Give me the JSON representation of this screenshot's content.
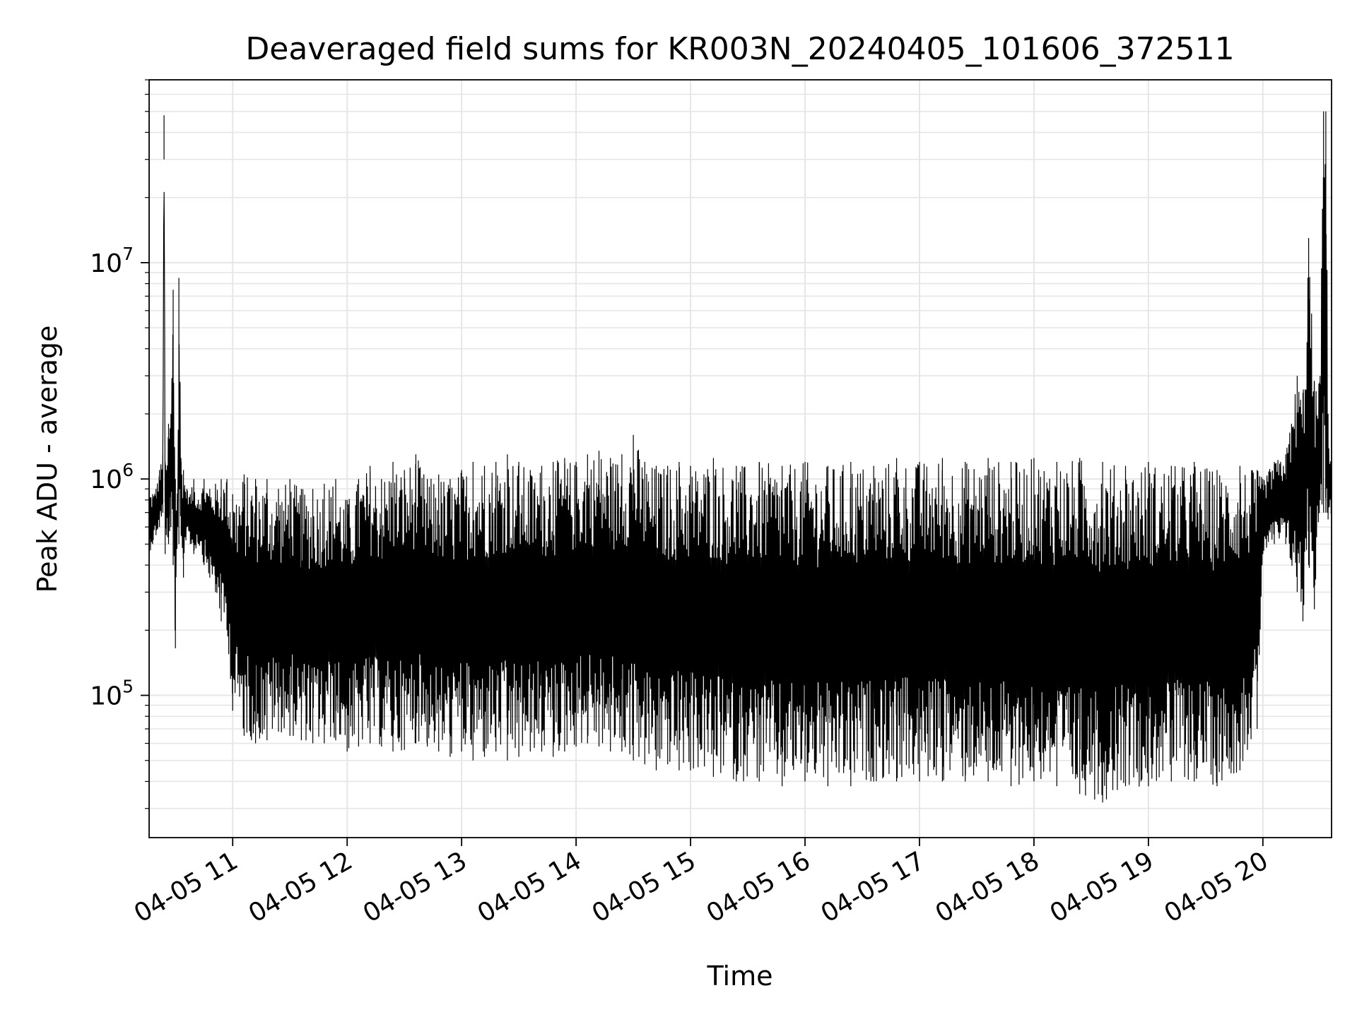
{
  "chart_data": {
    "type": "line",
    "title": "Deaveraged field sums for KR003N_20240405_101606_372511",
    "xlabel": "Time",
    "ylabel": "Peak ADU - average",
    "x_tick_labels": [
      "04-05 11",
      "04-05 12",
      "04-05 13",
      "04-05 14",
      "04-05 15",
      "04-05 16",
      "04-05 17",
      "04-05 18",
      "04-05 19",
      "04-05 20"
    ],
    "x_ticks_hours": [
      11,
      12,
      13,
      14,
      15,
      16,
      17,
      18,
      19,
      20
    ],
    "xlim_hours": [
      10.27,
      20.6
    ],
    "y_scale": "log",
    "ylim": [
      22000,
      70000000
    ],
    "y_tick_labels": [
      {
        "value": 100000,
        "base": "10",
        "exp": "5"
      },
      {
        "value": 1000000,
        "base": "10",
        "exp": "6"
      },
      {
        "value": 10000000,
        "base": "10",
        "exp": "7"
      }
    ],
    "grid": true,
    "line_color": "#000000",
    "grid_color": "#e6e6e6",
    "series": [
      {
        "name": "",
        "x_hours": [
          10.27,
          10.3,
          10.33,
          10.36,
          10.39,
          10.4,
          10.41,
          10.42,
          10.44,
          10.46,
          10.48,
          10.5,
          10.52,
          10.53,
          10.55,
          10.57,
          10.6,
          10.63,
          10.66,
          10.7,
          10.75,
          10.8,
          10.85,
          10.9,
          10.95,
          11.0,
          11.1,
          11.2,
          11.3,
          11.4,
          11.5,
          11.6,
          11.7,
          11.8,
          11.9,
          12.0,
          12.1,
          12.2,
          12.3,
          12.4,
          12.5,
          12.6,
          12.7,
          12.8,
          12.9,
          13.0,
          13.1,
          13.2,
          13.3,
          13.4,
          13.5,
          13.6,
          13.7,
          13.8,
          13.9,
          14.0,
          14.1,
          14.2,
          14.3,
          14.4,
          14.5,
          14.6,
          14.7,
          14.8,
          14.9,
          15.0,
          15.2,
          15.4,
          15.6,
          15.8,
          16.0,
          16.2,
          16.4,
          16.6,
          16.8,
          17.0,
          17.2,
          17.4,
          17.6,
          17.8,
          18.0,
          18.2,
          18.4,
          18.6,
          18.8,
          19.0,
          19.2,
          19.4,
          19.6,
          19.8,
          19.95,
          20.0,
          20.1,
          20.2,
          20.3,
          20.35,
          20.4,
          20.45,
          20.5,
          20.53,
          20.55,
          20.57,
          20.6
        ],
        "low": [
          450000,
          500000,
          550000,
          600000,
          700000,
          30000000,
          450000,
          550000,
          500000,
          600000,
          400000,
          165000,
          600000,
          500000,
          550000,
          350000,
          600000,
          500000,
          450000,
          500000,
          400000,
          350000,
          300000,
          220000,
          200000,
          85000,
          65000,
          60000,
          62000,
          68000,
          65000,
          62000,
          60000,
          60000,
          62000,
          55000,
          58000,
          60000,
          58000,
          55000,
          56000,
          60000,
          58000,
          55000,
          52000,
          55000,
          50000,
          52000,
          55000,
          50000,
          52000,
          55000,
          55000,
          52000,
          55000,
          58000,
          60000,
          58000,
          55000,
          55000,
          50000,
          48000,
          45000,
          48000,
          45000,
          45000,
          42000,
          40000,
          40000,
          38000,
          40000,
          38000,
          38000,
          40000,
          40000,
          40000,
          40000,
          40000,
          40000,
          38000,
          40000,
          38000,
          35000,
          32000,
          38000,
          38000,
          40000,
          40000,
          38000,
          45000,
          70000,
          450000,
          500000,
          500000,
          300000,
          220000,
          400000,
          250000,
          800000,
          700000,
          700000,
          650000,
          650000
        ],
        "high": [
          900000,
          850000,
          900000,
          1100000,
          1300000,
          48000000,
          1200000,
          1100000,
          1800000,
          2000000,
          7500000,
          1000000,
          900000,
          8500000,
          1200000,
          1100000,
          900000,
          850000,
          1000000,
          800000,
          1000000,
          900000,
          950000,
          1000000,
          1000000,
          850000,
          1050000,
          1000000,
          1000000,
          900000,
          1000000,
          900000,
          900000,
          950000,
          1000000,
          800000,
          1000000,
          1150000,
          1000000,
          1200000,
          1100000,
          1300000,
          1000000,
          1050000,
          1000000,
          1100000,
          1200000,
          1150000,
          1200000,
          1300000,
          1200000,
          1100000,
          1150000,
          1200000,
          1250000,
          1200000,
          1300000,
          1350000,
          1250000,
          1300000,
          1600000,
          1200000,
          1150000,
          1150000,
          1200000,
          1150000,
          1250000,
          1150000,
          1200000,
          1150000,
          1200000,
          1150000,
          1200000,
          1150000,
          1250000,
          1200000,
          1250000,
          1200000,
          1250000,
          1200000,
          1250000,
          1200000,
          1250000,
          1200000,
          1150000,
          1200000,
          1150000,
          1200000,
          1100000,
          1150000,
          1100000,
          1000000,
          1200000,
          1300000,
          3000000,
          2500000,
          13000000,
          2800000,
          3000000,
          50000000,
          50000000,
          2000000,
          1100000
        ]
      }
    ]
  }
}
